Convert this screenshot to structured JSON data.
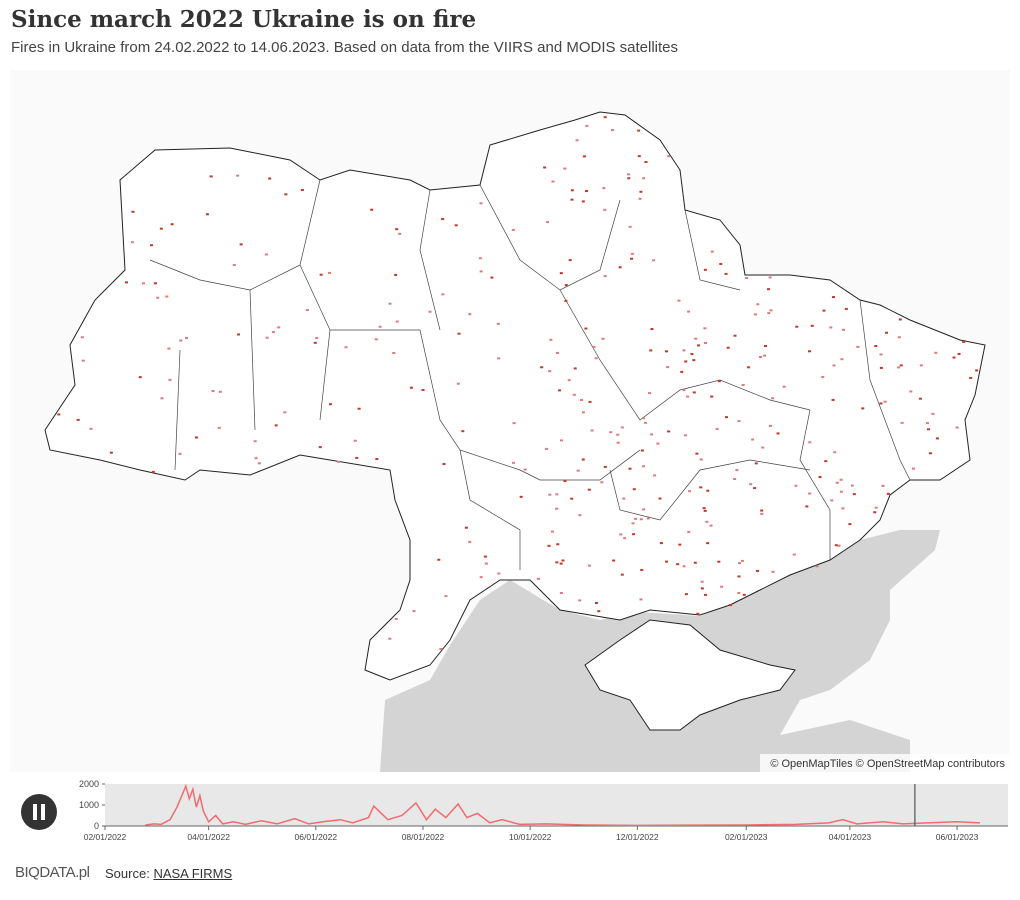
{
  "header": {
    "title": "Since march 2022 Ukraine is on fire",
    "subtitle": "Fires in Ukraine from 24.02.2022 to 14.06.2023. Based on data from the VIIRS and MODIS satellites"
  },
  "map": {
    "attribution": "© OpenMapTiles © OpenStreetMap contributors"
  },
  "chart_data": {
    "type": "line",
    "color": "#f26b6e",
    "x": [
      "2022-02-24",
      "2022-03-01",
      "2022-03-05",
      "2022-03-10",
      "2022-03-14",
      "2022-03-17",
      "2022-03-19",
      "2022-03-21",
      "2022-03-23",
      "2022-03-25",
      "2022-03-27",
      "2022-03-29",
      "2022-04-01",
      "2022-04-05",
      "2022-04-09",
      "2022-04-15",
      "2022-04-22",
      "2022-05-01",
      "2022-05-10",
      "2022-05-20",
      "2022-05-28",
      "2022-06-05",
      "2022-06-15",
      "2022-06-22",
      "2022-07-01",
      "2022-07-04",
      "2022-07-12",
      "2022-07-20",
      "2022-07-28",
      "2022-08-03",
      "2022-08-08",
      "2022-08-14",
      "2022-08-21",
      "2022-08-26",
      "2022-09-01",
      "2022-09-08",
      "2022-09-15",
      "2022-09-25",
      "2022-10-10",
      "2022-11-01",
      "2022-12-01",
      "2023-01-01",
      "2023-02-01",
      "2023-03-01",
      "2023-03-20",
      "2023-03-28",
      "2023-04-05",
      "2023-04-20",
      "2023-05-01",
      "2023-05-15",
      "2023-06-01",
      "2023-06-14"
    ],
    "values": [
      50,
      100,
      80,
      300,
      900,
      1500,
      1900,
      1300,
      1750,
      900,
      1450,
      700,
      200,
      500,
      100,
      200,
      80,
      250,
      100,
      350,
      100,
      200,
      300,
      150,
      400,
      950,
      300,
      500,
      1100,
      300,
      800,
      400,
      1050,
      400,
      600,
      150,
      300,
      80,
      100,
      50,
      30,
      40,
      50,
      80,
      150,
      300,
      100,
      200,
      100,
      150,
      200,
      150
    ],
    "cursor": "2023-05-08",
    "xlim": [
      "2022-02-01",
      "2023-06-30"
    ],
    "xticks": [
      {
        "value": "2022-02-01",
        "label": "02/01/2022"
      },
      {
        "value": "2022-04-01",
        "label": "04/01/2022"
      },
      {
        "value": "2022-06-01",
        "label": "06/01/2022"
      },
      {
        "value": "2022-08-01",
        "label": "08/01/2022"
      },
      {
        "value": "2022-10-01",
        "label": "10/01/2022"
      },
      {
        "value": "2022-12-01",
        "label": "12/01/2022"
      },
      {
        "value": "2023-02-01",
        "label": "02/01/2023"
      },
      {
        "value": "2023-04-01",
        "label": "04/01/2023"
      },
      {
        "value": "2023-06-01",
        "label": "06/01/2023"
      }
    ],
    "ylim": [
      0,
      2000
    ],
    "yticks": [
      0,
      1000,
      2000
    ]
  },
  "footer": {
    "logo": "BIQDATA.pl",
    "source_label": "Source:",
    "source_link": "NASA FIRMS"
  }
}
